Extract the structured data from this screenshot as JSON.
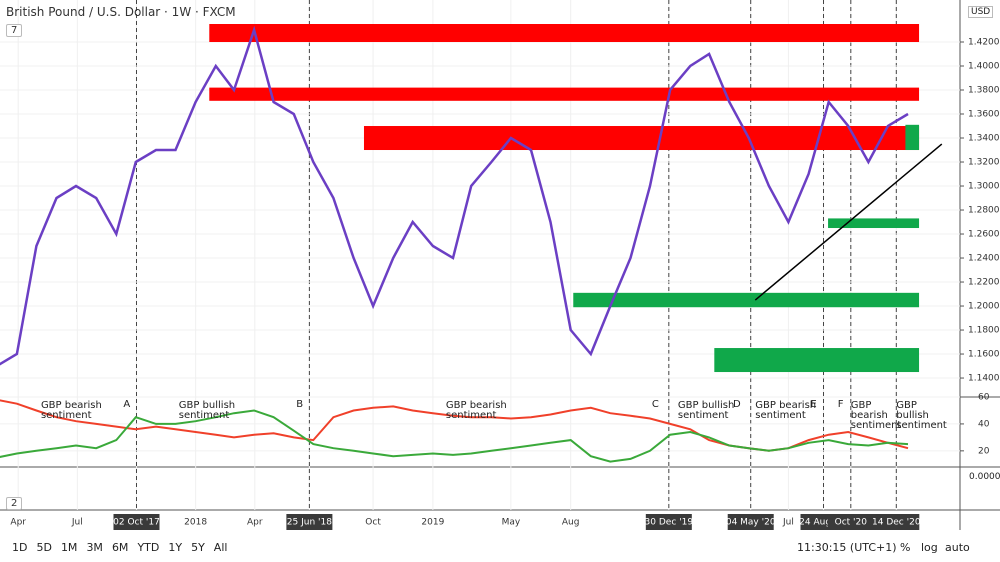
{
  "chart_data": [
    {
      "type": "line",
      "title": "British Pound / U.S. Dollar · 1W · FXCM",
      "axis_unit": "USD",
      "x": [
        "01 Mar '17",
        "01 Apr '17",
        "01 May '17",
        "01 Jun '17",
        "01 Jul '17",
        "01 Aug '17",
        "01 Sep '17",
        "01 Oct '17",
        "01 Nov '17",
        "01 Dec '17",
        "01 Jan '18",
        "01 Feb '18",
        "01 Mar '18",
        "01 Apr '18",
        "01 May '18",
        "01 Jun '18",
        "01 Jul '18",
        "01 Aug '18",
        "01 Sep '18",
        "01 Oct '18",
        "01 Nov '18",
        "01 Dec '18",
        "01 Jan '19",
        "01 Feb '19",
        "01 Mar '19",
        "01 Apr '19",
        "01 May '19",
        "01 Jun '19",
        "01 Jul '19",
        "01 Aug '19",
        "01 Sep '19",
        "01 Oct '19",
        "01 Nov '19",
        "01 Dec '19",
        "01 Jan '20",
        "01 Feb '20",
        "01 Mar '20",
        "01 Apr '20",
        "01 May '20",
        "01 Jun '20",
        "01 Jul '20",
        "01 Aug '20",
        "01 Sep '20",
        "01 Oct '20",
        "01 Nov '20",
        "01 Dec '20",
        "01 Jan '21"
      ],
      "series": [
        {
          "color": "#6b3fc4",
          "values": [
            1.15,
            1.16,
            1.25,
            1.29,
            1.3,
            1.29,
            1.26,
            1.32,
            1.33,
            1.33,
            1.37,
            1.4,
            1.38,
            1.43,
            1.37,
            1.36,
            1.32,
            1.29,
            1.24,
            1.2,
            1.24,
            1.27,
            1.25,
            1.24,
            1.3,
            1.32,
            1.34,
            1.33,
            1.27,
            1.18,
            1.16,
            1.2,
            1.24,
            1.3,
            1.38,
            1.4,
            1.41,
            1.37,
            1.34,
            1.3,
            1.27,
            1.31,
            1.37,
            1.35,
            1.32,
            1.35,
            1.36
          ]
        }
      ],
      "xlim": [
        "06 Mar '17",
        "22 Mar '21"
      ],
      "xticks": [
        {
          "value": "03 Apr '17",
          "label": "Apr"
        },
        {
          "value": "03 Jul '17",
          "label": "Jul"
        },
        "02 Oct '17",
        {
          "value": "01 Jan '18",
          "label": "2018"
        },
        {
          "value": "02 Apr '18",
          "label": "Apr"
        },
        "25 Jun '18",
        {
          "value": "01 Oct '18",
          "label": "Oct"
        },
        {
          "value": "01 Jan '19",
          "label": "2019"
        },
        {
          "value": "01 May '19",
          "label": "May"
        },
        {
          "value": "01 Aug '19",
          "label": "Aug"
        },
        "30 Dec '19",
        "04 May '20",
        {
          "value": "01 Jul '20",
          "label": "Jul"
        },
        "24 Aug '20",
        {
          "value": "05 Oct '20",
          "label": "Oct '20"
        },
        "14 Dec '20"
      ],
      "markers": [
        "02 Oct '17",
        "25 Jun '18",
        "30 Dec '19",
        "04 May '20",
        "24 Aug '20",
        "05 Oct '20",
        "14 Dec '20"
      ],
      "ylim": [
        1.1242,
        1.455
      ],
      "yticks": [
        {
          "value": 1.14,
          "label": "1.14000"
        },
        {
          "value": 1.16,
          "label": "1.16000"
        },
        {
          "value": 1.18,
          "label": "1.18000"
        },
        {
          "value": 1.2,
          "label": "1.20000"
        },
        {
          "value": 1.22,
          "label": "1.22000"
        },
        {
          "value": 1.24,
          "label": "1.24000"
        },
        {
          "value": 1.26,
          "label": "1.26000"
        },
        {
          "value": 1.28,
          "label": "1.28000"
        },
        {
          "value": 1.3,
          "label": "1.30000"
        },
        {
          "value": 1.32,
          "label": "1.32000"
        },
        {
          "value": 1.34,
          "label": "1.34000"
        },
        {
          "value": 1.36,
          "label": "1.36000"
        },
        {
          "value": 1.38,
          "label": "1.38000"
        },
        {
          "value": 1.4,
          "label": "1.40000"
        },
        {
          "value": 1.42,
          "label": "1.42000"
        }
      ],
      "zones": [
        {
          "from": "22 Jan '18",
          "to": "18 Jan '21",
          "low": 1.42,
          "high": 1.435,
          "color": "#ff0000"
        },
        {
          "from": "22 Jan '18",
          "to": "18 Jan '21",
          "low": 1.371,
          "high": 1.382,
          "color": "#ff0000"
        },
        {
          "from": "17 Sep '18",
          "to": "18 Jan '21",
          "low": 1.33,
          "high": 1.35,
          "color": "#ff0000"
        },
        {
          "from": "05 Aug '19",
          "to": "18 Jan '21",
          "low": 1.199,
          "high": 1.211,
          "color": "#10a84a"
        },
        {
          "from": "09 Mar '20",
          "to": "18 Jan '21",
          "low": 1.145,
          "high": 1.165,
          "color": "#10a84a"
        },
        {
          "from": "31 Aug '20",
          "to": "18 Jan '21",
          "low": 1.265,
          "high": 1.273,
          "color": "#10a84a"
        },
        {
          "from": "28 Dec '20",
          "to": "18 Jan '21",
          "low": 1.33,
          "high": 1.351,
          "color": "#10a84a"
        }
      ],
      "trendline": {
        "x": [
          "11 May '20",
          "22 Feb '21"
        ],
        "values": [
          1.205,
          1.335
        ],
        "color": "#000000"
      }
    },
    {
      "type": "line",
      "x": [
        "01 Mar '17",
        "01 Apr '17",
        "01 May '17",
        "01 Jun '17",
        "01 Jul '17",
        "01 Aug '17",
        "01 Sep '17",
        "01 Oct '17",
        "01 Nov '17",
        "01 Dec '17",
        "01 Jan '18",
        "01 Feb '18",
        "01 Mar '18",
        "01 Apr '18",
        "01 May '18",
        "01 Jun '18",
        "01 Jul '18",
        "01 Aug '18",
        "01 Sep '18",
        "01 Oct '18",
        "01 Nov '18",
        "01 Dec '18",
        "01 Jan '19",
        "01 Feb '19",
        "01 Mar '19",
        "01 Apr '19",
        "01 May '19",
        "01 Jun '19",
        "01 Jul '19",
        "01 Aug '19",
        "01 Sep '19",
        "01 Oct '19",
        "01 Nov '19",
        "01 Dec '19",
        "01 Jan '20",
        "01 Feb '20",
        "01 Mar '20",
        "01 Apr '20",
        "01 May '20",
        "01 Jun '20",
        "01 Jul '20",
        "01 Aug '20",
        "01 Sep '20",
        "01 Oct '20",
        "01 Nov '20",
        "01 Dec '20",
        "01 Jan '21"
      ],
      "series": [
        {
          "color": "#f0402a",
          "values": [
            58,
            55,
            50,
            45,
            42,
            40,
            38,
            36,
            38,
            36,
            34,
            32,
            30,
            32,
            33,
            30,
            28,
            45,
            50,
            52,
            53,
            50,
            48,
            46,
            45,
            45,
            44,
            45,
            47,
            50,
            52,
            48,
            46,
            44,
            40,
            36,
            28,
            24,
            22,
            20,
            22,
            28,
            32,
            34,
            30,
            26,
            22
          ]
        },
        {
          "color": "#3aa93a",
          "values": [
            15,
            18,
            20,
            22,
            24,
            22,
            28,
            45,
            40,
            40,
            42,
            45,
            48,
            50,
            45,
            35,
            25,
            22,
            20,
            18,
            16,
            17,
            18,
            17,
            18,
            20,
            22,
            24,
            26,
            28,
            16,
            12,
            14,
            20,
            32,
            34,
            30,
            24,
            22,
            20,
            22,
            26,
            28,
            25,
            24,
            26,
            25
          ]
        }
      ],
      "ylim": [
        8,
        60
      ],
      "yticks": [
        20,
        40,
        60
      ],
      "annotations": [
        {
          "text": "GBP bearish sentiment",
          "x": "08 May '17"
        },
        {
          "text": "A",
          "x": "18 Sep '17"
        },
        {
          "text": "GBP bullish sentiment",
          "x": "06 Dec '17"
        },
        {
          "text": "B",
          "x": "11 Jun '18"
        },
        {
          "text": "GBP bearish sentiment",
          "x": "21 Jan '19"
        },
        {
          "text": "C",
          "x": "10 Dec '19"
        },
        {
          "text": "GBP bullish sentiment",
          "x": "13 Jan '20"
        },
        {
          "text": "D",
          "x": "13 Apr '20"
        },
        {
          "text": "GBP bearish sentiment",
          "x": "11 May '20"
        },
        {
          "text": "E",
          "x": "10 Aug '20"
        },
        {
          "text": "F",
          "x": "21 Sep '20"
        },
        {
          "text": "GBP bearish sentiment",
          "x": "05 Oct '20"
        },
        {
          "text": "GBP bullish sentiment",
          "x": "14 Dec '20"
        }
      ]
    }
  ],
  "ui": {
    "pane1_badge": "7",
    "pane3_badge": "2",
    "pane3_tick": "0.0000",
    "ranges": [
      "1D",
      "5D",
      "1M",
      "3M",
      "6M",
      "YTD",
      "1Y",
      "5Y",
      "All"
    ],
    "clock": "11:30:15 (UTC+1)",
    "percent": "%",
    "log": "log",
    "auto": "auto"
  }
}
